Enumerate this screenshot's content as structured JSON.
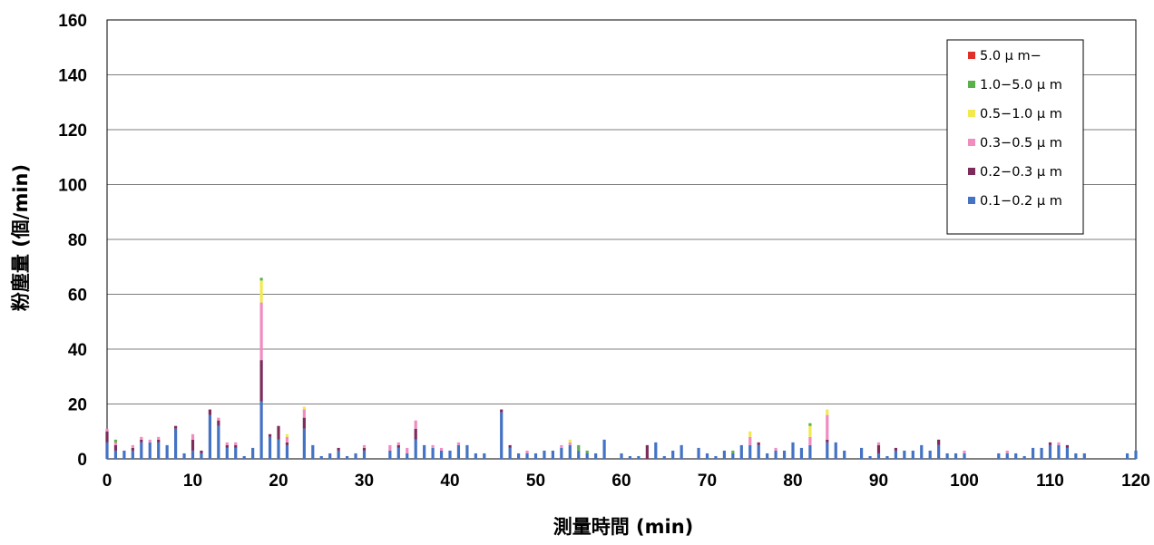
{
  "chart_data": {
    "type": "bar",
    "stacked": true,
    "xlabel": "測量時間 (min)",
    "ylabel": "粉塵量 (個/min)",
    "xlim": [
      0,
      120
    ],
    "ylim": [
      0,
      160
    ],
    "y_ticks": [
      0,
      20,
      40,
      60,
      80,
      100,
      120,
      140,
      160
    ],
    "x_ticks": [
      0,
      10,
      20,
      30,
      40,
      50,
      60,
      70,
      80,
      90,
      100,
      110,
      120
    ],
    "grid": true,
    "legend_position": "top-right",
    "legend_order": [
      "5.0μm-",
      "1.0-5.0μm",
      "0.5-1.0μm",
      "0.3-0.5μm",
      "0.2-0.3μm",
      "0.1-0.2μm"
    ],
    "legend_labels": {
      "5.0μm-": "5.0 μ m−",
      "1.0-5.0μm": "1.0−5.0 μ m",
      "0.5-1.0μm": "0.5−1.0 μ m",
      "0.3-0.5μm": "0.3−0.5 μ m",
      "0.2-0.3μm": "0.2−0.3 μ m",
      "0.1-0.2μm": "0.1−0.2 μ m"
    },
    "colors": {
      "0.1-0.2μm": "#4472c4",
      "0.2-0.3μm": "#7b2c5a",
      "0.3-0.5μm": "#f08cc0",
      "0.5-1.0μm": "#f2e94e",
      "1.0-5.0μm": "#5ab04a",
      "5.0μm-": "#e0302a"
    },
    "bars": [
      {
        "x": 0,
        "0.1-0.2μm": 6,
        "0.2-0.3μm": 4,
        "0.3-0.5μm": 1
      },
      {
        "x": 1,
        "0.1-0.2μm": 3,
        "0.2-0.3μm": 2,
        "0.3-0.5μm": 1,
        "1.0-5.0μm": 1
      },
      {
        "x": 2,
        "0.1-0.2μm": 3
      },
      {
        "x": 3,
        "0.1-0.2μm": 3,
        "0.2-0.3μm": 1,
        "0.3-0.5μm": 1
      },
      {
        "x": 4,
        "0.1-0.2μm": 6,
        "0.2-0.3μm": 1,
        "0.3-0.5μm": 1
      },
      {
        "x": 5,
        "0.1-0.2μm": 6,
        "0.3-0.5μm": 1
      },
      {
        "x": 6,
        "0.1-0.2μm": 6,
        "0.2-0.3μm": 1,
        "0.3-0.5μm": 1
      },
      {
        "x": 7,
        "0.1-0.2μm": 5
      },
      {
        "x": 8,
        "0.1-0.2μm": 11,
        "0.2-0.3μm": 1
      },
      {
        "x": 9,
        "0.1-0.2μm": 2
      },
      {
        "x": 10,
        "0.1-0.2μm": 3,
        "0.2-0.3μm": 4,
        "0.3-0.5μm": 2
      },
      {
        "x": 11,
        "0.1-0.2μm": 2,
        "0.2-0.3μm": 1
      },
      {
        "x": 12,
        "0.1-0.2μm": 16,
        "0.2-0.3μm": 2
      },
      {
        "x": 13,
        "0.1-0.2μm": 12,
        "0.2-0.3μm": 2,
        "0.3-0.5μm": 1
      },
      {
        "x": 14,
        "0.1-0.2μm": 4,
        "0.2-0.3μm": 1,
        "0.3-0.5μm": 1
      },
      {
        "x": 15,
        "0.1-0.2μm": 4,
        "0.2-0.3μm": 1,
        "0.3-0.5μm": 1
      },
      {
        "x": 16,
        "0.1-0.2μm": 1
      },
      {
        "x": 17,
        "0.1-0.2μm": 4
      },
      {
        "x": 18,
        "0.1-0.2μm": 21,
        "0.2-0.3μm": 15,
        "0.3-0.5μm": 21,
        "0.5-1.0μm": 8,
        "1.0-5.0μm": 1
      },
      {
        "x": 19,
        "0.1-0.2μm": 8,
        "0.2-0.3μm": 1
      },
      {
        "x": 20,
        "0.1-0.2μm": 7,
        "0.2-0.3μm": 5
      },
      {
        "x": 21,
        "0.1-0.2μm": 5,
        "0.2-0.3μm": 1,
        "0.3-0.5μm": 2,
        "0.5-1.0μm": 1
      },
      {
        "x": 23,
        "0.1-0.2μm": 11,
        "0.2-0.3μm": 4,
        "0.3-0.5μm": 3,
        "0.5-1.0μm": 1
      },
      {
        "x": 24,
        "0.1-0.2μm": 5
      },
      {
        "x": 25,
        "0.1-0.2μm": 1
      },
      {
        "x": 26,
        "0.1-0.2μm": 2
      },
      {
        "x": 27,
        "0.1-0.2μm": 3,
        "0.2-0.3μm": 1
      },
      {
        "x": 28,
        "0.1-0.2μm": 1
      },
      {
        "x": 29,
        "0.1-0.2μm": 2
      },
      {
        "x": 30,
        "0.1-0.2μm": 3,
        "0.2-0.3μm": 1,
        "0.3-0.5μm": 1
      },
      {
        "x": 33,
        "0.1-0.2μm": 3,
        "0.3-0.5μm": 2
      },
      {
        "x": 34,
        "0.1-0.2μm": 4,
        "0.2-0.3μm": 1,
        "0.3-0.5μm": 1
      },
      {
        "x": 35,
        "0.1-0.2μm": 2,
        "0.3-0.5μm": 2
      },
      {
        "x": 36,
        "0.1-0.2μm": 7,
        "0.2-0.3μm": 4,
        "0.3-0.5μm": 3
      },
      {
        "x": 37,
        "0.1-0.2μm": 5
      },
      {
        "x": 38,
        "0.1-0.2μm": 4,
        "0.3-0.5μm": 1
      },
      {
        "x": 39,
        "0.1-0.2μm": 3,
        "0.3-0.5μm": 1
      },
      {
        "x": 40,
        "0.1-0.2μm": 3
      },
      {
        "x": 41,
        "0.1-0.2μm": 5,
        "0.3-0.5μm": 1
      },
      {
        "x": 42,
        "0.1-0.2μm": 5
      },
      {
        "x": 43,
        "0.1-0.2μm": 2
      },
      {
        "x": 44,
        "0.1-0.2μm": 2
      },
      {
        "x": 46,
        "0.1-0.2μm": 17,
        "0.2-0.3μm": 1
      },
      {
        "x": 47,
        "0.1-0.2μm": 4,
        "0.2-0.3μm": 1
      },
      {
        "x": 48,
        "0.1-0.2μm": 2
      },
      {
        "x": 49,
        "0.1-0.2μm": 2,
        "0.3-0.5μm": 1
      },
      {
        "x": 50,
        "0.1-0.2μm": 2
      },
      {
        "x": 51,
        "0.1-0.2μm": 3
      },
      {
        "x": 52,
        "0.1-0.2μm": 3
      },
      {
        "x": 53,
        "0.1-0.2μm": 4,
        "0.3-0.5μm": 1
      },
      {
        "x": 54,
        "0.1-0.2μm": 5,
        "0.3-0.5μm": 1,
        "0.5-1.0μm": 1
      },
      {
        "x": 55,
        "0.1-0.2μm": 3,
        "1.0-5.0μm": 2
      },
      {
        "x": 56,
        "0.1-0.2μm": 2,
        "1.0-5.0μm": 1
      },
      {
        "x": 57,
        "0.1-0.2μm": 2
      },
      {
        "x": 58,
        "0.1-0.2μm": 7
      },
      {
        "x": 60,
        "0.1-0.2μm": 2
      },
      {
        "x": 61,
        "0.1-0.2μm": 1
      },
      {
        "x": 62,
        "0.1-0.2μm": 1
      },
      {
        "x": 63,
        "0.2-0.3μm": 5
      },
      {
        "x": 64,
        "0.1-0.2μm": 6
      },
      {
        "x": 65,
        "0.1-0.2μm": 1
      },
      {
        "x": 66,
        "0.1-0.2μm": 3
      },
      {
        "x": 67,
        "0.1-0.2μm": 5
      },
      {
        "x": 69,
        "0.1-0.2μm": 4
      },
      {
        "x": 70,
        "0.1-0.2μm": 2
      },
      {
        "x": 71,
        "0.1-0.2μm": 1
      },
      {
        "x": 72,
        "0.1-0.2μm": 3
      },
      {
        "x": 73,
        "0.1-0.2μm": 2,
        "1.0-5.0μm": 1
      },
      {
        "x": 74,
        "0.1-0.2μm": 5
      },
      {
        "x": 75,
        "0.1-0.2μm": 5,
        "0.3-0.5μm": 3,
        "0.5-1.0μm": 2
      },
      {
        "x": 76,
        "0.1-0.2μm": 5,
        "0.2-0.3μm": 1
      },
      {
        "x": 77,
        "0.1-0.2μm": 2
      },
      {
        "x": 78,
        "0.1-0.2μm": 3,
        "0.3-0.5μm": 1
      },
      {
        "x": 79,
        "0.1-0.2μm": 3
      },
      {
        "x": 80,
        "0.1-0.2μm": 6
      },
      {
        "x": 81,
        "0.1-0.2μm": 4
      },
      {
        "x": 82,
        "0.1-0.2μm": 5,
        "0.3-0.5μm": 3,
        "0.5-1.0μm": 4,
        "1.0-5.0μm": 1
      },
      {
        "x": 84,
        "0.1-0.2μm": 6,
        "0.2-0.3μm": 1,
        "0.3-0.5μm": 9,
        "0.5-1.0μm": 2
      },
      {
        "x": 85,
        "0.1-0.2μm": 6
      },
      {
        "x": 86,
        "0.1-0.2μm": 3
      },
      {
        "x": 88,
        "0.1-0.2μm": 4
      },
      {
        "x": 89,
        "0.1-0.2μm": 1
      },
      {
        "x": 90,
        "0.1-0.2μm": 2,
        "0.2-0.3μm": 3,
        "0.3-0.5μm": 1
      },
      {
        "x": 91,
        "0.1-0.2μm": 1
      },
      {
        "x": 92,
        "0.1-0.2μm": 3,
        "0.2-0.3μm": 1
      },
      {
        "x": 93,
        "0.1-0.2μm": 3
      },
      {
        "x": 94,
        "0.1-0.2μm": 3
      },
      {
        "x": 95,
        "0.1-0.2μm": 5
      },
      {
        "x": 96,
        "0.1-0.2μm": 3
      },
      {
        "x": 97,
        "0.1-0.2μm": 5,
        "0.2-0.3μm": 2
      },
      {
        "x": 98,
        "0.1-0.2μm": 2
      },
      {
        "x": 99,
        "0.1-0.2μm": 2
      },
      {
        "x": 100,
        "0.1-0.2μm": 2,
        "0.3-0.5μm": 1
      },
      {
        "x": 104,
        "0.1-0.2μm": 2
      },
      {
        "x": 105,
        "0.1-0.2μm": 2,
        "0.3-0.5μm": 1
      },
      {
        "x": 106,
        "0.1-0.2μm": 2
      },
      {
        "x": 107,
        "0.1-0.2μm": 1
      },
      {
        "x": 108,
        "0.1-0.2μm": 4
      },
      {
        "x": 109,
        "0.1-0.2μm": 4
      },
      {
        "x": 110,
        "0.1-0.2μm": 5,
        "0.2-0.3μm": 1
      },
      {
        "x": 111,
        "0.1-0.2μm": 5,
        "0.3-0.5μm": 1
      },
      {
        "x": 112,
        "0.1-0.2μm": 4,
        "0.2-0.3μm": 1
      },
      {
        "x": 113,
        "0.1-0.2μm": 2
      },
      {
        "x": 114,
        "0.1-0.2μm": 2
      },
      {
        "x": 119,
        "0.1-0.2μm": 2
      },
      {
        "x": 120,
        "0.1-0.2μm": 3
      }
    ]
  }
}
